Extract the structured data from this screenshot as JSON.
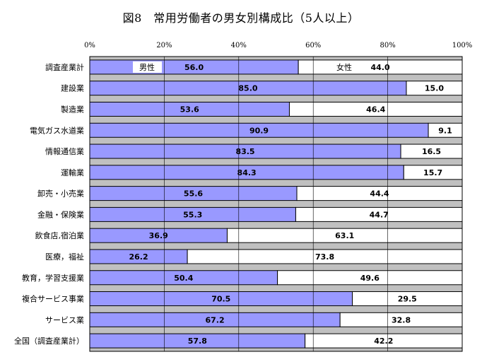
{
  "chart_data": {
    "type": "bar",
    "orientation": "horizontal",
    "stacked": true,
    "percent": true,
    "title": "図8　常用労働者の男女別構成比（5人以上）",
    "x_ticks": [
      "0%",
      "20%",
      "40%",
      "60%",
      "80%",
      "100%"
    ],
    "xlim": [
      0,
      100
    ],
    "x_axis_position": "top",
    "grid": true,
    "legend": "inside-first-bar",
    "categories": [
      "調査産業計",
      "建設業",
      "製造業",
      "電気ガス水道業",
      "情報通信業",
      "運輸業",
      "卸売・小売業",
      "金融・保険業",
      "飲食店,宿泊業",
      "医療，福祉",
      "教育，学習支援業",
      "複合サービス事業",
      "サービス業",
      "全国（調査産業計）"
    ],
    "series": [
      {
        "name": "男性",
        "color": "#9999ff",
        "values": [
          56.0,
          85.0,
          53.6,
          90.9,
          83.5,
          84.3,
          55.6,
          55.3,
          36.9,
          26.2,
          50.4,
          70.5,
          67.2,
          57.8
        ]
      },
      {
        "name": "女性",
        "color": "#ffffff",
        "values": [
          44.0,
          15.0,
          46.4,
          9.1,
          16.5,
          15.7,
          44.4,
          44.7,
          63.1,
          73.8,
          49.6,
          29.5,
          32.8,
          42.2
        ]
      }
    ],
    "colors": {
      "plot_background": "#c0c0c0",
      "gridline": "#000000",
      "bar_border": "#000000"
    }
  }
}
